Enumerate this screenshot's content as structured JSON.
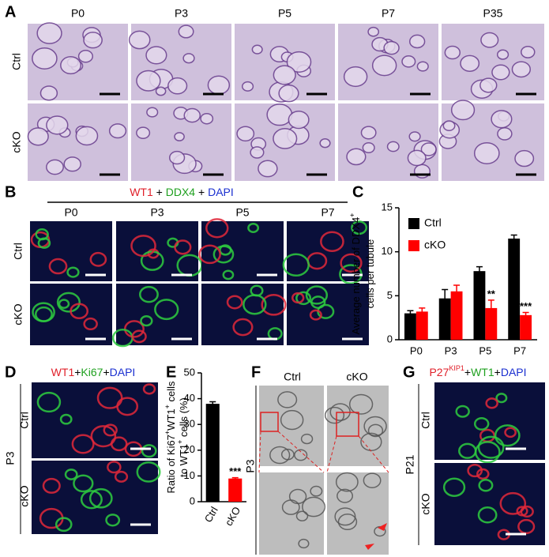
{
  "panel_labels": [
    "A",
    "B",
    "C",
    "D",
    "E",
    "F",
    "G"
  ],
  "panel_a": {
    "columns": [
      "P0",
      "P3",
      "P5",
      "P7",
      "P35"
    ],
    "rows": [
      "Ctrl",
      "cKO"
    ]
  },
  "panel_b": {
    "stain": [
      "WT1",
      " + ",
      "DDX4",
      " + ",
      "DAPI"
    ],
    "columns": [
      "P0",
      "P3",
      "P5",
      "P7"
    ],
    "rows": [
      "Ctrl",
      "cKO"
    ]
  },
  "panel_d": {
    "stain": [
      "WT1",
      "+",
      "Ki67",
      "+",
      "DAPI"
    ],
    "age": "P3",
    "rows": [
      "Ctrl",
      "cKO"
    ]
  },
  "panel_f": {
    "columns": [
      "Ctrl",
      "cKO"
    ],
    "age": "P3"
  },
  "panel_g": {
    "stain": [
      "P27",
      "KIP1",
      "+",
      "WT1",
      "+",
      "DAPI"
    ],
    "age": "P21",
    "rows": [
      "Ctrl",
      "cKO"
    ]
  },
  "chart_data": [
    {
      "type": "bar",
      "ylabel": [
        [
          {
            "text": "Average number of DDX4"
          },
          {
            "text": "+",
            "sup": true
          }
        ],
        [
          {
            "text": "cells per tubule"
          }
        ]
      ],
      "categories": [
        "P0",
        "P3",
        "P5",
        "P7"
      ],
      "series": [
        {
          "name": "Ctrl",
          "color": "#000000",
          "values": [
            3.0,
            4.7,
            7.8,
            11.5
          ],
          "errors": [
            0.3,
            1.0,
            0.5,
            0.4
          ]
        },
        {
          "name": "cKO",
          "color": "#ff0000",
          "values": [
            3.2,
            5.5,
            3.6,
            2.8
          ],
          "errors": [
            0.4,
            0.7,
            0.9,
            0.3
          ]
        }
      ],
      "annotations": [
        {
          "text": "**",
          "category": "P5",
          "series": "cKO"
        },
        {
          "text": "***",
          "category": "P7",
          "series": "cKO"
        }
      ],
      "ylim": [
        0,
        15
      ],
      "yticks": [
        0,
        5,
        10,
        15
      ]
    },
    {
      "type": "bar",
      "ylabel": [
        [
          {
            "text": "Ratio of Ki67"
          },
          {
            "text": "+",
            "sup": true
          },
          {
            "text": "WT1"
          },
          {
            "text": "+",
            "sup": true
          },
          {
            "text": " cells"
          }
        ],
        [
          {
            "text": "to WT1"
          },
          {
            "text": "+",
            "sup": true
          },
          {
            "text": " cells (%)"
          }
        ]
      ],
      "categories": [
        "Ctrl",
        "cKO"
      ],
      "values": [
        38,
        9
      ],
      "errors": [
        0.8,
        0.3
      ],
      "colors": [
        "#000000",
        "#ff0000"
      ],
      "annotations": [
        {
          "text": "***",
          "category": "cKO"
        }
      ],
      "ylim": [
        0,
        50
      ],
      "yticks": [
        0,
        10,
        20,
        30,
        40,
        50
      ]
    }
  ]
}
